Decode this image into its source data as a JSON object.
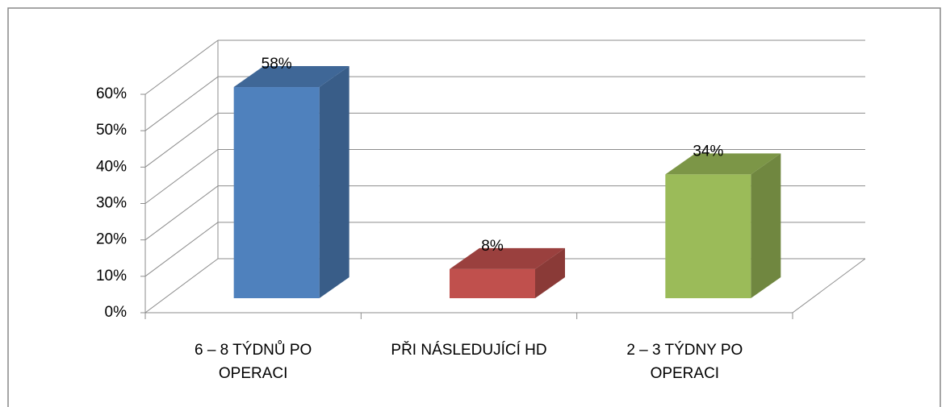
{
  "chart_data": {
    "type": "bar3d",
    "categories": [
      "6 – 8 TÝDNŮ PO OPERACI",
      "PŘI NÁSLEDUJÍCÍ HD",
      "2 – 3 TÝDNY PO OPERACI"
    ],
    "values": [
      58,
      8,
      34
    ],
    "value_labels": [
      "58%",
      "8%",
      "34%"
    ],
    "colors": [
      "#4f81bd",
      "#c0504d",
      "#9bbb59"
    ],
    "ylim": [
      0,
      60
    ],
    "yticks": [
      {
        "value": 0,
        "label": "0%"
      },
      {
        "value": 10,
        "label": "10%"
      },
      {
        "value": 20,
        "label": "20%"
      },
      {
        "value": 30,
        "label": "30%"
      },
      {
        "value": 40,
        "label": "40%"
      },
      {
        "value": 50,
        "label": "50%"
      },
      {
        "value": 60,
        "label": "60%"
      }
    ],
    "grid": true
  }
}
